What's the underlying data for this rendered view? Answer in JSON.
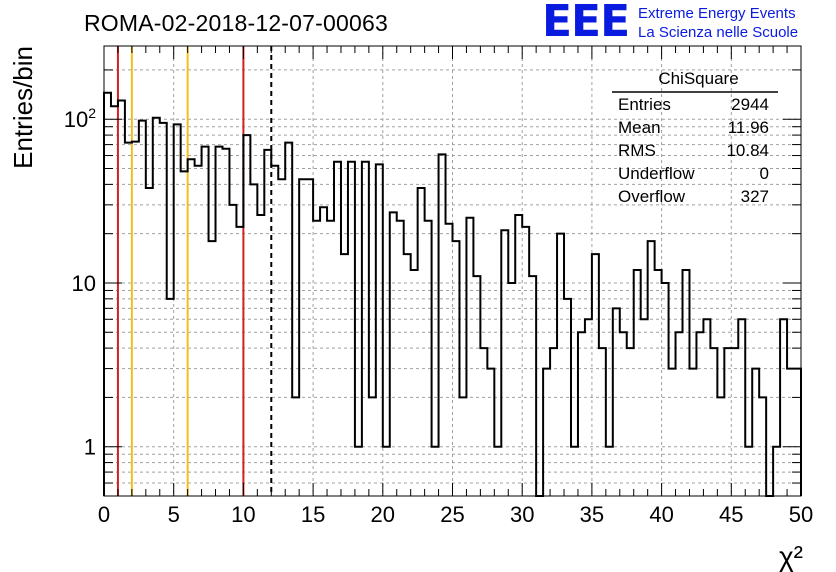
{
  "title": "ROMA-02-2018-12-07-00063",
  "logo": {
    "mark": "EEE",
    "line1": "Extreme Energy Events",
    "line2": "La Scienza nelle Scuole"
  },
  "stats": {
    "name": "ChiSquare",
    "rows": [
      {
        "label": "Entries",
        "value": "2944"
      },
      {
        "label": "Mean",
        "value": "11.96"
      },
      {
        "label": "RMS",
        "value": "10.84"
      },
      {
        "label": "Underflow",
        "value": "0"
      },
      {
        "label": "Overflow",
        "value": "327"
      }
    ]
  },
  "colors": {
    "red_line": "#d42020",
    "yellow_line": "#f2c01a",
    "histogram": "#000000",
    "grid": "#a0a0a0",
    "logo": "#0a1be0"
  },
  "chart_data": {
    "type": "bar",
    "style": "step-histogram",
    "xlabel": "χ²",
    "ylabel": "Entries/bin",
    "xlim": [
      0,
      50
    ],
    "ylim": [
      0.5,
      280
    ],
    "yscale": "log",
    "grid": true,
    "bin_width": 0.5,
    "x_ticks": [
      0,
      5,
      10,
      15,
      20,
      25,
      30,
      35,
      40,
      45,
      50
    ],
    "y_ticks": [
      {
        "value": 1,
        "label": "1",
        "sup": ""
      },
      {
        "value": 10,
        "label": "10",
        "sup": ""
      },
      {
        "value": 100,
        "label": "10",
        "sup": "2"
      }
    ],
    "values": [
      145,
      120,
      130,
      72,
      73,
      98,
      38,
      102,
      95,
      8,
      93,
      48,
      57,
      52,
      68,
      18,
      68,
      66,
      30,
      22,
      80,
      40,
      26,
      65,
      52,
      43,
      72,
      2,
      43,
      43,
      24,
      29,
      24,
      55,
      15,
      55,
      1,
      55,
      2,
      53,
      1,
      27,
      24,
      15,
      12,
      38,
      24,
      1,
      61,
      23,
      18,
      2,
      25,
      11,
      4,
      3,
      1,
      21,
      10,
      26,
      22,
      11,
      0,
      3,
      4,
      20,
      8,
      1,
      5,
      6,
      15,
      4,
      1,
      7,
      5,
      4,
      12,
      6,
      18,
      12,
      10,
      3,
      5,
      12,
      3,
      5,
      6,
      4,
      2,
      4,
      4,
      6,
      1,
      3,
      2,
      0,
      1,
      6,
      3,
      3
    ],
    "vertical_lines": [
      {
        "x": 1,
        "color": "#d42020",
        "style": "solid"
      },
      {
        "x": 2,
        "color": "#f2c01a",
        "style": "solid"
      },
      {
        "x": 6,
        "color": "#f2c01a",
        "style": "solid"
      },
      {
        "x": 10,
        "color": "#d42020",
        "style": "solid"
      },
      {
        "x": 12,
        "color": "#000000",
        "style": "dashed"
      }
    ]
  }
}
